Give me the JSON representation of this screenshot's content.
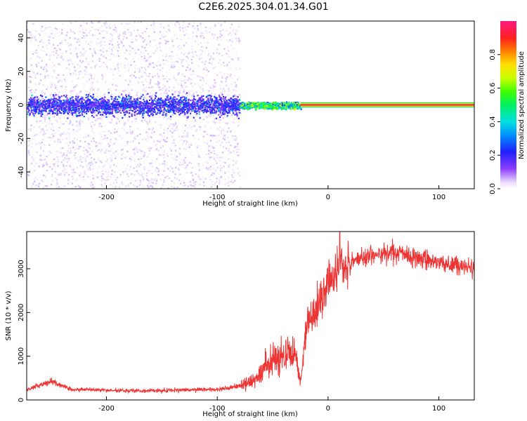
{
  "title": "C2E6.2025.304.01.34.G01",
  "chart_data": [
    {
      "type": "heatmap",
      "xlabel": "Height of straight line (km)",
      "ylabel": "Frequency (Hz)",
      "xlim": [
        -272,
        132
      ],
      "ylim": [
        -50,
        50
      ],
      "xticks": [
        -200,
        -100,
        0,
        100
      ],
      "xtick_labels": [
        "-200",
        "-100",
        "0",
        "100"
      ],
      "yticks": [
        -40,
        -20,
        0,
        20,
        40
      ],
      "ytick_labels": [
        "-40",
        "-20",
        "0",
        "20",
        "40"
      ],
      "colorbar": {
        "label": "Normalized spectral amplitude",
        "range": [
          0,
          1
        ],
        "ticks": [
          0,
          0.2,
          0.4,
          0.6,
          0.8
        ],
        "tick_labels": [
          "0.0",
          "0.2",
          "0.4",
          "0.6",
          "0.8"
        ]
      },
      "regions": [
        {
          "x": [
            -272,
            -80
          ],
          "freq_band": [
            -50,
            50
          ],
          "amplitude": 0.05,
          "note": "diffuse scatter"
        },
        {
          "x": [
            -272,
            -80
          ],
          "freq_band": [
            -10,
            10
          ],
          "amplitude": 0.2,
          "note": "blue core"
        },
        {
          "x": [
            -80,
            -25
          ],
          "freq_band": [
            -3,
            3
          ],
          "amplitude": 0.45
        },
        {
          "x": [
            -25,
            132
          ],
          "freq_band": [
            -1,
            1
          ],
          "amplitude": 0.95
        }
      ]
    },
    {
      "type": "line",
      "xlabel": "Height of straight line (km)",
      "ylabel": "SNR (10 * v/v)",
      "xlim": [
        -272,
        132
      ],
      "ylim": [
        0,
        3850
      ],
      "xticks": [
        -200,
        -100,
        0,
        100
      ],
      "xtick_labels": [
        "-200",
        "-100",
        "0",
        "100"
      ],
      "yticks": [
        0,
        1000,
        2000,
        3000
      ],
      "ytick_labels": [
        "0",
        "1000",
        "2000",
        "3000"
      ],
      "color": "#ee3333",
      "series": [
        {
          "x": [
            -270,
            -260,
            -250,
            -240,
            -230,
            -220,
            -200,
            -180,
            -160,
            -140,
            -120,
            -100,
            -90,
            -80,
            -70,
            -60,
            -50,
            -40,
            -30,
            -25,
            -22,
            -20,
            -15,
            -10,
            -5,
            0,
            5,
            10,
            20,
            30,
            40,
            50,
            60,
            70,
            80,
            90,
            100,
            110,
            120,
            130
          ],
          "values": [
            250,
            330,
            430,
            320,
            230,
            240,
            220,
            210,
            215,
            220,
            230,
            240,
            270,
            330,
            420,
            650,
            900,
            1050,
            1150,
            400,
            1100,
            1700,
            1850,
            2100,
            2300,
            2700,
            2900,
            3050,
            3150,
            3250,
            3300,
            3350,
            3350,
            3320,
            3250,
            3200,
            3150,
            3100,
            3050,
            3000
          ]
        }
      ]
    }
  ]
}
